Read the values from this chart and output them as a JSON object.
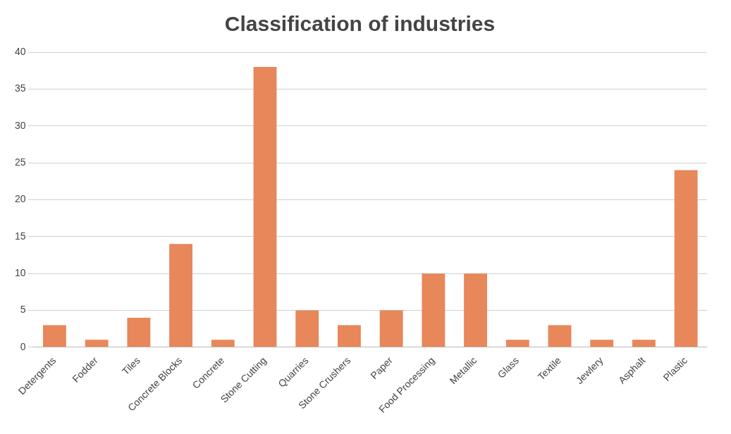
{
  "chart_data": {
    "type": "bar",
    "title": "Classification of industries",
    "categories": [
      "Detergents",
      "Fodder",
      "Tiles",
      "Concrete Blocks",
      "Concrete",
      "Stone Cutting",
      "Quarries",
      "Stone Crushers",
      "Paper",
      "Food Processing",
      "Metallic",
      "Glass",
      "Textile",
      "Jewlery",
      "Asphalt",
      "Plastic"
    ],
    "values": [
      3,
      1,
      4,
      14,
      1,
      38,
      5,
      3,
      5,
      10,
      10,
      1,
      3,
      1,
      1,
      24
    ],
    "color": "#e8875a",
    "ylim": [
      0,
      40
    ],
    "yticks": [
      0,
      5,
      10,
      15,
      20,
      25,
      30,
      35,
      40
    ],
    "grid": "y",
    "legend": false
  }
}
